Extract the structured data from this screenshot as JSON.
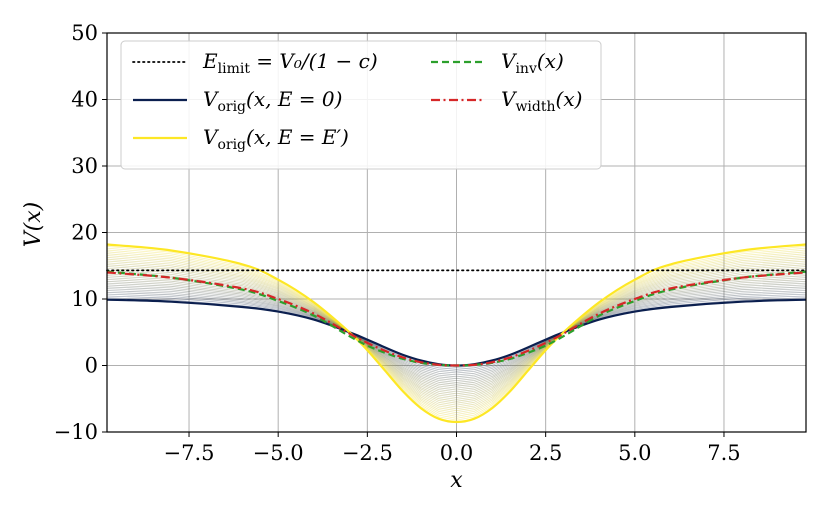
{
  "chart_data": {
    "type": "line",
    "title": "",
    "xlabel": "x",
    "ylabel": "V(x)",
    "xlim": [
      -9.8,
      9.8
    ],
    "ylim": [
      -10,
      50
    ],
    "grid": true,
    "legend_position": "top-left",
    "x_ticks": [
      -7.5,
      -5.0,
      -2.5,
      0.0,
      2.5,
      5.0,
      7.5
    ],
    "x_tick_labels": [
      "−7.5",
      "−5.0",
      "−2.5",
      "0.0",
      "2.5",
      "5.0",
      "7.5"
    ],
    "y_ticks": [
      -10,
      0,
      10,
      20,
      30,
      40,
      50
    ],
    "y_tick_labels": [
      "−10",
      "0",
      "10",
      "20",
      "30",
      "40",
      "50"
    ],
    "series": [
      {
        "name": "E_limit = V_0/(1−c)",
        "legend_main": "E",
        "legend_sub": "limit",
        "legend_rest": " = V₀/(1 − c)",
        "style": "dotted",
        "color": "#000000",
        "x": [
          -9.8,
          9.8
        ],
        "y": [
          14.3,
          14.3
        ]
      },
      {
        "name": "V_orig(x, E=0)",
        "legend_main": "V",
        "legend_sub": "orig",
        "legend_rest": "(x, E = 0)",
        "style": "solid",
        "color": "#0b1f4f",
        "x": [
          -9.8,
          -8,
          -6,
          -5,
          -4,
          -3,
          -2.5,
          -2,
          -1.5,
          -1,
          -0.5,
          0,
          0.5,
          1,
          1.5,
          2,
          2.5,
          3,
          4,
          5,
          6,
          8,
          9.8
        ],
        "y": [
          9.9,
          9.6,
          8.8,
          8.1,
          6.9,
          5.0,
          3.9,
          2.7,
          1.6,
          0.75,
          0.2,
          0.0,
          0.2,
          0.75,
          1.6,
          2.7,
          3.9,
          5.0,
          6.9,
          8.1,
          8.8,
          9.6,
          9.9
        ]
      },
      {
        "name": "V_orig(x, E=E')",
        "legend_main": "V",
        "legend_sub": "orig",
        "legend_rest": "(x, E = E′)",
        "style": "solid",
        "color": "#fde725",
        "x": [
          -9.8,
          -8,
          -6,
          -5,
          -4,
          -3,
          -2.5,
          -2,
          -1.5,
          -1,
          -0.5,
          0,
          0.5,
          1,
          1.5,
          2,
          2.5,
          3,
          4,
          5,
          6,
          8,
          9.8
        ],
        "y": [
          18.2,
          17.3,
          15.2,
          12.9,
          9.5,
          5.0,
          2.3,
          -0.8,
          -3.9,
          -6.4,
          -8.0,
          -8.5,
          -8.0,
          -6.4,
          -3.9,
          -0.8,
          2.3,
          5.0,
          9.5,
          12.9,
          15.2,
          17.3,
          18.2
        ]
      },
      {
        "name": "V_inv(x)",
        "legend_main": "V",
        "legend_sub": "inv",
        "legend_rest": "(x)",
        "style": "dashed",
        "color": "#2ca02c",
        "x": [
          -9.8,
          -8,
          -6,
          -5,
          -4,
          -3,
          -2.5,
          -2,
          -1.5,
          -1,
          -0.5,
          0,
          0.5,
          1,
          1.5,
          2,
          2.5,
          3,
          4,
          5,
          6,
          8,
          9.8
        ],
        "y": [
          14.1,
          13.2,
          11.4,
          9.7,
          7.5,
          4.4,
          3.0,
          1.9,
          1.0,
          0.4,
          0.1,
          0.0,
          0.1,
          0.4,
          1.0,
          1.9,
          3.0,
          4.4,
          7.5,
          9.7,
          11.4,
          13.2,
          14.1
        ]
      },
      {
        "name": "V_width(x)",
        "legend_main": "V",
        "legend_sub": "width",
        "legend_rest": "(x)",
        "style": "dashdot",
        "color": "#d62728",
        "x": [
          -9.8,
          -8,
          -6,
          -5,
          -4,
          -3,
          -2.5,
          -2,
          -1.5,
          -1,
          -0.5,
          0,
          0.5,
          1,
          1.5,
          2,
          2.5,
          3,
          4,
          5,
          6,
          8,
          9.8
        ],
        "y": [
          14.0,
          13.2,
          11.6,
          10.0,
          7.8,
          4.8,
          3.4,
          2.2,
          1.2,
          0.5,
          0.1,
          0.0,
          0.1,
          0.5,
          1.2,
          2.2,
          3.4,
          4.8,
          7.8,
          10.0,
          11.6,
          13.2,
          14.0
        ]
      }
    ],
    "band": {
      "description": "family of curves between V_orig(x,E=0) and V_orig(x,E=E')",
      "count": 30,
      "color_start": "#0b1f4f",
      "color_end": "#fde725"
    },
    "legend_columns": [
      [
        0,
        1,
        2
      ],
      [
        3,
        4
      ]
    ]
  }
}
